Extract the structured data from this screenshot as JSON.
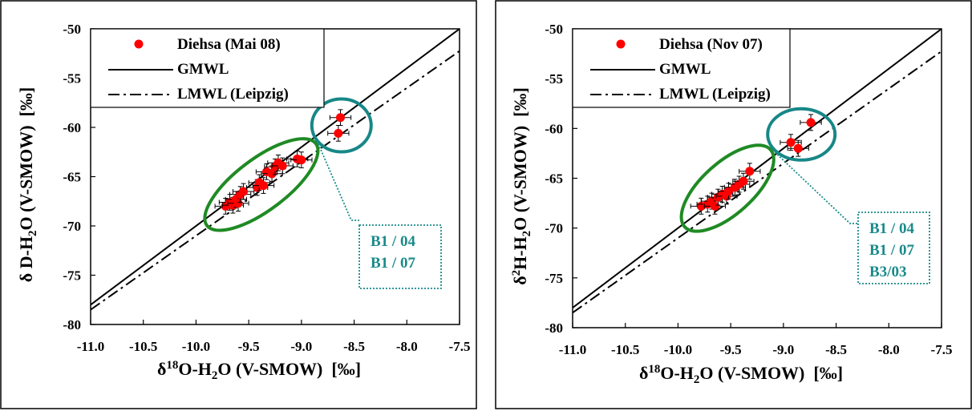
{
  "chart_data": [
    {
      "type": "scatter",
      "title": "",
      "xlabel": {
        "prefix": "δ",
        "sup": "18",
        "main": "O-H",
        "sub": "2",
        "rest": "O (V-SMOW)",
        "unit": "[‰]"
      },
      "ylabel": {
        "prefix": "δ ",
        "sup": "",
        "main": "D-H",
        "sub": "2",
        "rest": "O (V-SMOW)",
        "unit": "[‰]"
      },
      "xlim": [
        -11.0,
        -7.5
      ],
      "ylim": [
        -80,
        -50
      ],
      "xticks": [
        -11.0,
        -10.5,
        -10.0,
        -9.5,
        -9.0,
        -8.5,
        -8.0,
        -7.5
      ],
      "xtick_labels": [
        "-11.0",
        "-10.5",
        "-10.0",
        "-9.5",
        "-9.0",
        "-8.5",
        "-8.0",
        "-7.5"
      ],
      "yticks": [
        -80,
        -75,
        -70,
        -65,
        -60,
        -55,
        -50
      ],
      "ytick_labels": [
        "-80",
        "-75",
        "-70",
        "-65",
        "-60",
        "-55",
        "-50"
      ],
      "legend": {
        "placement": "top-left",
        "entries": [
          {
            "label": "Diehsa (Mai 08)",
            "kind": "marker"
          },
          {
            "label": "GMWL",
            "kind": "solid"
          },
          {
            "label": "LMWL (Leipzig)",
            "kind": "dashdot"
          }
        ]
      },
      "lines": [
        {
          "name": "GMWL",
          "slope": 8,
          "intercept": 10,
          "style": "solid"
        },
        {
          "name": "LMWL (Leipzig)",
          "slope": 7.5,
          "intercept": 4.0,
          "style": "dashdot"
        }
      ],
      "error": {
        "x": 0.1,
        "y": 0.8
      },
      "points": [
        {
          "x": -9.72,
          "y": -68.0
        },
        {
          "x": -9.68,
          "y": -67.6
        },
        {
          "x": -9.65,
          "y": -67.9
        },
        {
          "x": -9.62,
          "y": -67.3
        },
        {
          "x": -9.6,
          "y": -67.7
        },
        {
          "x": -9.58,
          "y": -66.8
        },
        {
          "x": -9.55,
          "y": -66.5
        },
        {
          "x": -9.42,
          "y": -66.1
        },
        {
          "x": -9.4,
          "y": -65.6
        },
        {
          "x": -9.36,
          "y": -65.9
        },
        {
          "x": -9.33,
          "y": -64.5
        },
        {
          "x": -9.28,
          "y": -64.7
        },
        {
          "x": -9.25,
          "y": -64.0
        },
        {
          "x": -9.22,
          "y": -63.6
        },
        {
          "x": -9.18,
          "y": -63.9
        },
        {
          "x": -9.04,
          "y": -63.2
        },
        {
          "x": -9.0,
          "y": -63.3
        },
        {
          "x": -8.63,
          "y": -59.0
        },
        {
          "x": -8.65,
          "y": -60.6
        }
      ],
      "ellipses": [
        {
          "cx": -9.38,
          "cy": -65.8,
          "rx_px": 85,
          "ry_px": 32,
          "angle_deg": -37,
          "color": "#1f8a24"
        },
        {
          "cx": -8.62,
          "cy": -59.8,
          "rx_px": 37,
          "ry_px": 33,
          "angle_deg": 0,
          "color": "#178787"
        }
      ],
      "annotation": {
        "lines": [
          "B1 / 04",
          "B1 / 07"
        ],
        "color": "#1a8a8a"
      }
    },
    {
      "type": "scatter",
      "title": "",
      "xlabel": {
        "prefix": "δ",
        "sup": "18",
        "main": "O-H",
        "sub": "2",
        "rest": "O (V-SMOW)",
        "unit": "[‰]"
      },
      "ylabel": {
        "prefix": "δ",
        "sup": "2",
        "main": "H-H",
        "sub": "2",
        "rest": "O (V-SMOW)",
        "unit": "[‰]"
      },
      "xlim": [
        -11.0,
        -7.5
      ],
      "ylim": [
        -80,
        -50
      ],
      "xticks": [
        -11.0,
        -10.5,
        -10.0,
        -9.5,
        -9.0,
        -8.5,
        -8.0,
        -7.5
      ],
      "xtick_labels": [
        "-11.0",
        "-10.5",
        "-10.0",
        "-9.5",
        "-9.0",
        "-8.5",
        "-8.0",
        "-7.5"
      ],
      "yticks": [
        -80,
        -75,
        -70,
        -65,
        -60,
        -55,
        -50
      ],
      "ytick_labels": [
        "-80",
        "-75",
        "-70",
        "-65",
        "-60",
        "-55",
        "-50"
      ],
      "legend": {
        "placement": "top-left",
        "entries": [
          {
            "label": "Diehsa (Nov 07)",
            "kind": "marker"
          },
          {
            "label": "GMWL",
            "kind": "solid"
          },
          {
            "label": "LMWL (Leipzig)",
            "kind": "dashdot"
          }
        ]
      },
      "lines": [
        {
          "name": "GMWL",
          "slope": 8,
          "intercept": 10,
          "style": "solid"
        },
        {
          "name": "LMWL (Leipzig)",
          "slope": 7.5,
          "intercept": 4.0,
          "style": "dashdot"
        }
      ],
      "error": {
        "x": 0.1,
        "y": 0.8
      },
      "points": [
        {
          "x": -9.78,
          "y": -67.8
        },
        {
          "x": -9.72,
          "y": -67.6
        },
        {
          "x": -9.68,
          "y": -67.3
        },
        {
          "x": -9.65,
          "y": -67.8
        },
        {
          "x": -9.62,
          "y": -66.9
        },
        {
          "x": -9.58,
          "y": -66.6
        },
        {
          "x": -9.54,
          "y": -66.8
        },
        {
          "x": -9.52,
          "y": -66.3
        },
        {
          "x": -9.46,
          "y": -65.9
        },
        {
          "x": -9.42,
          "y": -65.6
        },
        {
          "x": -9.38,
          "y": -65.3
        },
        {
          "x": -9.32,
          "y": -64.3
        },
        {
          "x": -8.93,
          "y": -61.4
        },
        {
          "x": -8.86,
          "y": -62.0
        },
        {
          "x": -8.74,
          "y": -59.4
        }
      ],
      "ellipses": [
        {
          "cx": -9.53,
          "cy": -66.0,
          "rx_px": 72,
          "ry_px": 32,
          "angle_deg": -42,
          "color": "#1f8a24"
        },
        {
          "cx": -8.83,
          "cy": -60.6,
          "rx_px": 42,
          "ry_px": 32,
          "angle_deg": 0,
          "color": "#178787"
        }
      ],
      "annotation": {
        "lines": [
          "B1 / 04",
          "B1 / 07",
          "B3/03"
        ],
        "color": "#1a8a8a"
      }
    }
  ],
  "colors": {
    "marker": "#ff0000",
    "frame": "#000000"
  }
}
